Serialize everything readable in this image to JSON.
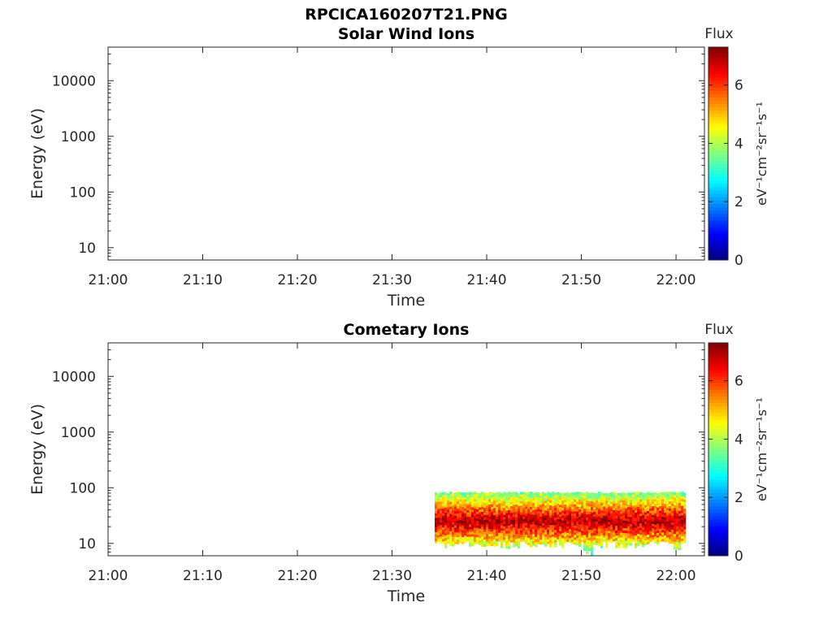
{
  "figure_title": "RPCICA160207T21.PNG",
  "chart_data": [
    {
      "type": "heatmap",
      "title": "Solar Wind Ions",
      "xlabel": "Time",
      "ylabel": "Energy (eV)",
      "x_ticks": [
        "21:00",
        "21:10",
        "21:20",
        "21:30",
        "21:40",
        "21:50",
        "22:00"
      ],
      "x_range": [
        "21:00",
        "22:03"
      ],
      "y_scale": "log",
      "y_ticks": [
        10,
        100,
        1000,
        10000
      ],
      "y_tick_labels": [
        "10",
        "100",
        "1000",
        "10000"
      ],
      "ylim": [
        6,
        40000
      ],
      "colorbar": {
        "label": "Flux",
        "units": "eV⁻¹cm⁻²sr⁻¹s⁻¹",
        "ticks": [
          0,
          2,
          4,
          6
        ],
        "tick_labels": [
          "0",
          "2",
          "4",
          "6"
        ],
        "range": [
          0,
          7.3
        ],
        "colormap": "jet"
      },
      "data": []
    },
    {
      "type": "heatmap",
      "title": "Cometary Ions",
      "xlabel": "Time",
      "ylabel": "Energy (eV)",
      "x_ticks": [
        "21:00",
        "21:10",
        "21:20",
        "21:30",
        "21:40",
        "21:50",
        "22:00"
      ],
      "x_range": [
        "21:00",
        "22:03"
      ],
      "y_scale": "log",
      "y_ticks": [
        10,
        100,
        1000,
        10000
      ],
      "y_tick_labels": [
        "10",
        "100",
        "1000",
        "10000"
      ],
      "ylim": [
        6,
        40000
      ],
      "colorbar": {
        "label": "Flux",
        "units": "eV⁻¹cm⁻²sr⁻¹s⁻¹",
        "ticks": [
          0,
          2,
          4,
          6
        ],
        "tick_labels": [
          "0",
          "2",
          "4",
          "6"
        ],
        "range": [
          0,
          7.3
        ],
        "colormap": "jet"
      },
      "data": {
        "time_start": "21:34.5",
        "time_end": "22:01",
        "energy_min": 8,
        "energy_max": 85,
        "peak_energy": 25,
        "peak_flux": 7,
        "dips": [
          {
            "time": "21:39.5",
            "energy_min": 8
          },
          {
            "time": "21:50.5",
            "energy_min": 6
          },
          {
            "time": "22:00",
            "energy_min": 7
          }
        ]
      }
    }
  ]
}
